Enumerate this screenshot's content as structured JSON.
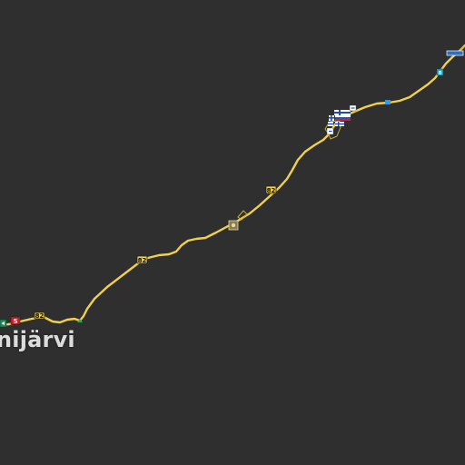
{
  "map": {
    "background_color": "#2f2f2f",
    "road_color": "#f2d04a",
    "city": {
      "name": "nijärvi"
    },
    "road_shields": [
      {
        "number": "82",
        "style": "yellow"
      },
      {
        "number": "82",
        "style": "yellow"
      },
      {
        "number": "82",
        "style": "yellow"
      },
      {
        "number": "5",
        "style": "red"
      }
    ],
    "icons": [
      "fuel-station-icon",
      "border-crossing-icon",
      "finland-flag-icon",
      "russia-flag-icon",
      "service-station-icon",
      "direction-arrow-icon"
    ]
  }
}
